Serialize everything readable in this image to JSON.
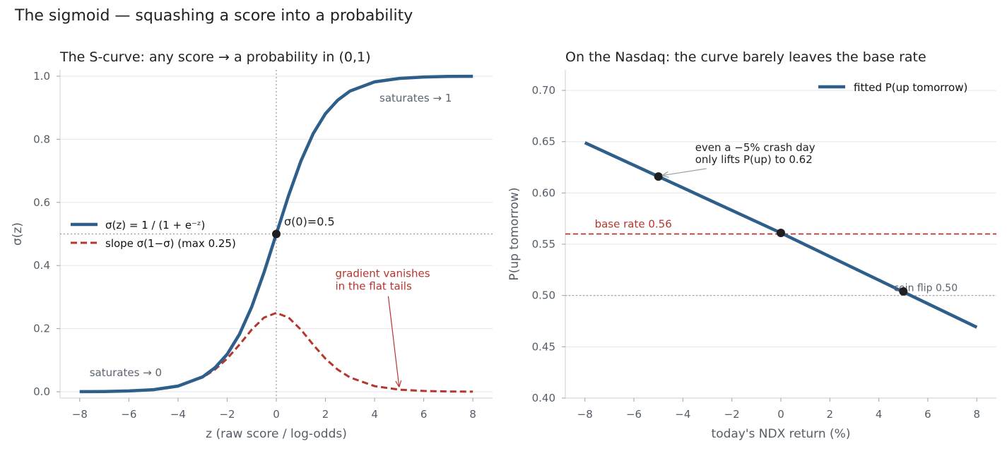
{
  "suptitle": "The sigmoid — squashing a score into a probability",
  "colors": {
    "curve": "#2e5f8a",
    "slope": "#b5362f",
    "marker": "#1f1f1f",
    "grid": "#e6e6e6",
    "axis_text": "#555d66",
    "annotation_gray": "#5b6470",
    "reference_line": "#9a9a9a"
  },
  "chart_data": [
    {
      "type": "line",
      "title": "The S-curve: any score → a probability in (0,1)",
      "xlabel": "z  (raw score / log-odds)",
      "ylabel": "σ(z)",
      "xlim": [
        -8.8,
        8.8
      ],
      "ylim": [
        -0.02,
        1.02
      ],
      "xticks": [
        -8,
        -6,
        -4,
        -2,
        0,
        2,
        4,
        6,
        8
      ],
      "xtick_labels": [
        "−8",
        "−6",
        "−4",
        "−2",
        "0",
        "2",
        "4",
        "6",
        "8"
      ],
      "yticks": [
        0.0,
        0.2,
        0.4,
        0.6,
        0.8,
        1.0
      ],
      "ytick_labels": [
        "0.0",
        "0.2",
        "0.4",
        "0.6",
        "0.8",
        "1.0"
      ],
      "grid": "horizontal",
      "legend_position": "center-left",
      "series": [
        {
          "name": "σ(z) = 1 / (1 + e⁻ᶻ)",
          "style": "solid",
          "x": [
            -8,
            -7,
            -6,
            -5,
            -4,
            -3,
            -2.5,
            -2,
            -1.5,
            -1,
            -0.5,
            0,
            0.5,
            1,
            1.5,
            2,
            2.5,
            3,
            4,
            5,
            6,
            7,
            8
          ],
          "y": [
            0.0003,
            0.0009,
            0.0025,
            0.0067,
            0.018,
            0.047,
            0.076,
            0.119,
            0.182,
            0.269,
            0.378,
            0.5,
            0.622,
            0.731,
            0.818,
            0.881,
            0.924,
            0.953,
            0.982,
            0.993,
            0.9975,
            0.9991,
            0.9997
          ]
        },
        {
          "name": "slope σ(1−σ)  (max 0.25)",
          "style": "dashed",
          "x": [
            -8,
            -7,
            -6,
            -5,
            -4,
            -3,
            -2.5,
            -2,
            -1.5,
            -1,
            -0.5,
            0,
            0.5,
            1,
            1.5,
            2,
            2.5,
            3,
            4,
            5,
            6,
            7,
            8
          ],
          "y": [
            0.0003,
            0.0009,
            0.0025,
            0.0066,
            0.0177,
            0.0452,
            0.0701,
            0.105,
            0.149,
            0.197,
            0.235,
            0.25,
            0.235,
            0.197,
            0.149,
            0.105,
            0.0701,
            0.0452,
            0.0177,
            0.0066,
            0.0025,
            0.0009,
            0.0003
          ]
        }
      ],
      "vline_x": 0,
      "hline_y": 0.5,
      "points": [
        {
          "x": 0,
          "y": 0.5,
          "label": "σ(0)=0.5"
        }
      ],
      "annotations": [
        {
          "text": "saturates → 1",
          "x": 4.2,
          "y": 0.93
        },
        {
          "text": "saturates → 0",
          "x": -7.6,
          "y": 0.06
        },
        {
          "lines": [
            "gradient vanishes",
            "in the flat tails"
          ],
          "x": 2.4,
          "y": 0.37,
          "arrow_to": [
            5.0,
            0.015
          ]
        }
      ]
    },
    {
      "type": "line",
      "title": "On the Nasdaq: the curve barely leaves the base rate",
      "xlabel": "today's NDX return (%)",
      "ylabel": "P(up tomorrow)",
      "xlim": [
        -8.8,
        8.8
      ],
      "ylim": [
        0.4,
        0.72
      ],
      "xticks": [
        -8,
        -6,
        -4,
        -2,
        0,
        2,
        4,
        6,
        8
      ],
      "xtick_labels": [
        "−8",
        "−6",
        "−4",
        "−2",
        "0",
        "2",
        "4",
        "6",
        "8"
      ],
      "yticks": [
        0.4,
        0.45,
        0.5,
        0.55,
        0.6,
        0.65,
        0.7
      ],
      "ytick_labels": [
        "0.40",
        "0.45",
        "0.50",
        "0.55",
        "0.60",
        "0.65",
        "0.70"
      ],
      "grid": "horizontal",
      "legend_position": "top-right",
      "series": [
        {
          "name": "fitted P(up tomorrow)",
          "style": "solid",
          "x": [
            -8,
            -6,
            -4,
            -2,
            0,
            2,
            4,
            6,
            8
          ],
          "y": [
            0.649,
            0.627,
            0.605,
            0.583,
            0.561,
            0.538,
            0.515,
            0.492,
            0.469
          ]
        }
      ],
      "hlines": [
        {
          "y": 0.56,
          "label": "base rate 0.56",
          "style": "dashed"
        },
        {
          "y": 0.5,
          "label": "coin flip 0.50",
          "style": "dotted"
        }
      ],
      "points": [
        {
          "x": -5,
          "y": 0.616
        },
        {
          "x": 0,
          "y": 0.561
        },
        {
          "x": 5,
          "y": 0.504
        }
      ],
      "annotations": [
        {
          "lines": [
            "even a −5% crash day",
            "only lifts P(up) to 0.62"
          ],
          "x": -3.5,
          "y": 0.632,
          "arrow_to": [
            -4.85,
            0.617
          ]
        }
      ]
    }
  ]
}
